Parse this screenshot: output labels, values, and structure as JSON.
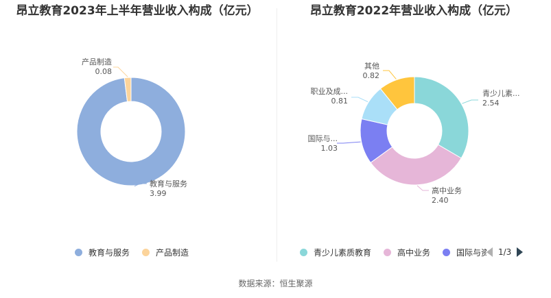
{
  "chart_data": [
    {
      "type": "pie",
      "title": "昂立教育2023年上半年营业收入构成（亿元）",
      "series": [
        {
          "name": "教育与服务",
          "value": 3.99,
          "value_label": "3.99",
          "color": "#8eaedd"
        },
        {
          "name": "产品制造",
          "value": 0.08,
          "value_label": "0.08",
          "color": "#fcd49b"
        }
      ],
      "legend": [
        "教育与服务",
        "产品制造"
      ]
    },
    {
      "type": "pie",
      "title": "昂立教育2022年营业收入构成（亿元）",
      "series": [
        {
          "name": "青少儿素质教育",
          "label": "青少儿素...",
          "value": 2.54,
          "value_label": "2.54",
          "color": "#8ad7d9"
        },
        {
          "name": "高中业务",
          "label": "高中业务",
          "value": 2.4,
          "value_label": "2.40",
          "color": "#e6b6d8"
        },
        {
          "name": "国际与...",
          "label": "国际与...",
          "value": 1.03,
          "value_label": "1.03",
          "color": "#7b7ff2"
        },
        {
          "name": "职业及成...",
          "label": "职业及成...",
          "value": 0.81,
          "value_label": "0.81",
          "color": "#aadff8"
        },
        {
          "name": "其他",
          "label": "其他",
          "value": 0.82,
          "value_label": "0.82",
          "color": "#ffc53d"
        }
      ],
      "legend": [
        "青少儿素质教育",
        "高中业务",
        "国际与资"
      ],
      "legend_page": "1/3"
    }
  ],
  "source": "数据来源：恒生聚源"
}
